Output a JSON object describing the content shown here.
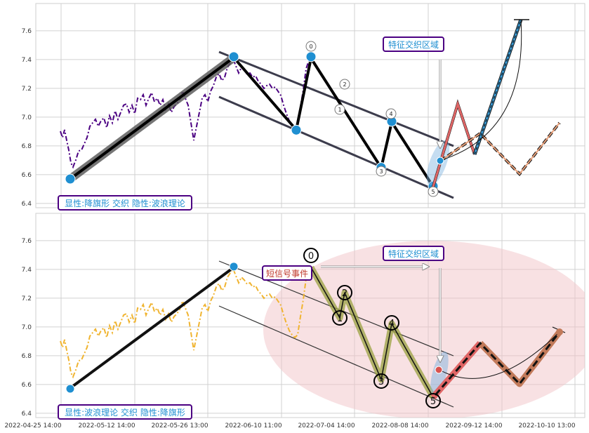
{
  "chart_data": {
    "type": "line",
    "ylim": [
      6.37,
      7.79
    ],
    "yticks": [
      "6.4",
      "6.6",
      "6.8",
      "7.0",
      "7.2",
      "7.4",
      "7.6"
    ],
    "xticks": [
      "2022-04-25 14:00",
      "2022-05-12 14:00",
      "2022-05-26 13:00",
      "2022-06-10 11:00",
      "2022-07-04 14:00",
      "2022-08-08 14:00",
      "2022-09-12 14:00",
      "2022-10-10 13:00"
    ],
    "grid": true,
    "panels": [
      {
        "legend_text": "显性:降旗形 交织 隐性:波浪理论",
        "zone_label": "特征交织区域",
        "price_color": "#4b0082",
        "pivot_points": [
          {
            "x": 0.0,
            "y": 6.57
          },
          {
            "x": 3.0,
            "y": 7.42
          },
          {
            "x": 4.0,
            "y": 6.91
          },
          {
            "x": 4.4,
            "y": 7.42
          },
          {
            "x": 5.4,
            "y": 6.65
          },
          {
            "x": 5.6,
            "y": 6.97
          },
          {
            "x": 6.0,
            "y": 6.52
          },
          {
            "x": 6.4,
            "y": 6.7
          }
        ],
        "wave_labels": [
          {
            "label": "0",
            "x": 4.4,
            "y": 7.5
          },
          {
            "label": "1",
            "x": 4.7,
            "y": 7.06
          },
          {
            "label": "2",
            "x": 5.0,
            "y": 7.23
          },
          {
            "label": "3",
            "x": 5.4,
            "y": 6.62
          },
          {
            "label": "4",
            "x": 5.6,
            "y": 7.03
          },
          {
            "label": "5",
            "x": 6.0,
            "y": 6.48
          }
        ],
        "projections": [
          {
            "name": "red",
            "color": "#e06666",
            "points": [
              {
                "x": 6.1,
                "y": 6.6
              },
              {
                "x": 6.6,
                "y": 7.09
              },
              {
                "x": 7.0,
                "y": 6.73
              }
            ]
          },
          {
            "name": "blue",
            "color": "#3a9bd5",
            "points": [
              {
                "x": 7.0,
                "y": 6.73
              },
              {
                "x": 8.2,
                "y": 7.69
              }
            ]
          },
          {
            "name": "orange",
            "color": "#e8a07a",
            "points": [
              {
                "x": 6.1,
                "y": 6.6
              },
              {
                "x": 7.2,
                "y": 6.88
              },
              {
                "x": 8.0,
                "y": 6.6
              },
              {
                "x": 9.0,
                "y": 6.96
              }
            ]
          }
        ]
      },
      {
        "legend_text": "显性:波浪理论 交织 隐性:降旗形",
        "zone_label": "特征交织区域",
        "signal_label": "短信号事件",
        "price_color": "#f0b430",
        "pivot_points": [
          {
            "x": 0.0,
            "y": 6.57
          },
          {
            "x": 3.0,
            "y": 7.42
          }
        ],
        "wave_points": [
          {
            "x": 4.4,
            "y": 7.42
          },
          {
            "x": 4.7,
            "y": 7.06
          },
          {
            "x": 5.0,
            "y": 7.22
          },
          {
            "x": 5.4,
            "y": 6.63
          },
          {
            "x": 5.6,
            "y": 6.99
          },
          {
            "x": 6.0,
            "y": 6.52
          }
        ],
        "wave_labels": [
          {
            "label": "0",
            "x": 4.4,
            "y": 7.5
          },
          {
            "label": "1",
            "x": 4.7,
            "y": 7.06
          },
          {
            "label": "2",
            "x": 5.0,
            "y": 7.24
          },
          {
            "label": "3",
            "x": 5.4,
            "y": 6.62
          },
          {
            "label": "4",
            "x": 5.6,
            "y": 7.02
          },
          {
            "label": "5",
            "x": 6.0,
            "y": 6.48
          }
        ],
        "projection": [
          {
            "x": 6.0,
            "y": 6.52
          },
          {
            "x": 7.2,
            "y": 6.88
          },
          {
            "x": 8.0,
            "y": 6.6
          },
          {
            "x": 9.0,
            "y": 6.96
          }
        ]
      }
    ]
  }
}
